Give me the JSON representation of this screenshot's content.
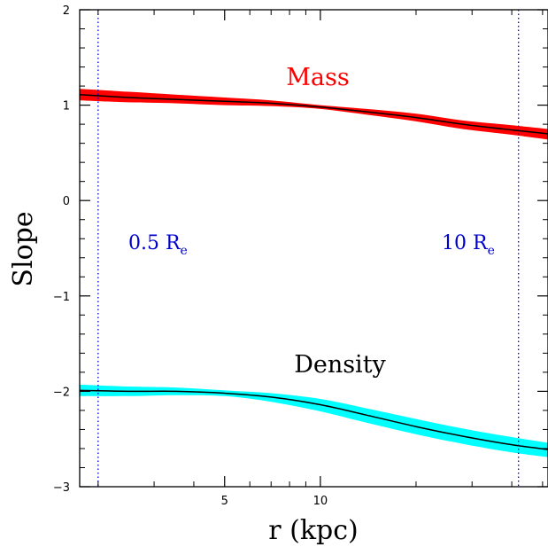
{
  "chart_data": {
    "type": "line",
    "xlabel": "r (kpc)",
    "ylabel": "Slope",
    "x_scale": "log",
    "xlim": [
      1.75,
      52
    ],
    "ylim": [
      -3,
      2
    ],
    "x_ticks": [
      {
        "value": 5,
        "label": "5"
      },
      {
        "value": 10,
        "label": "10"
      }
    ],
    "x_minor_ticks": [
      2,
      3,
      4,
      6,
      7,
      8,
      9,
      20,
      30,
      40,
      50
    ],
    "y_ticks": [
      {
        "value": 2,
        "label": "2"
      },
      {
        "value": 1,
        "label": "1"
      },
      {
        "value": 0,
        "label": "0"
      },
      {
        "value": -1,
        "label": "−1"
      },
      {
        "value": -2,
        "label": "−2"
      },
      {
        "value": -3,
        "label": "−3"
      }
    ],
    "y_minor_step": 0.2,
    "series": [
      {
        "name": "Mass",
        "color": "#ff0000",
        "line_color": "#000000",
        "x": [
          1.75,
          2.5,
          3.5,
          5,
          7,
          10,
          14,
          20,
          28,
          40,
          52
        ],
        "y": [
          1.11,
          1.08,
          1.06,
          1.04,
          1.02,
          0.98,
          0.93,
          0.87,
          0.8,
          0.74,
          0.7
        ],
        "lo": [
          1.05,
          1.03,
          1.02,
          1.0,
          0.99,
          0.96,
          0.9,
          0.83,
          0.75,
          0.69,
          0.64
        ],
        "hi": [
          1.17,
          1.14,
          1.11,
          1.08,
          1.05,
          1.0,
          0.96,
          0.91,
          0.84,
          0.79,
          0.75
        ]
      },
      {
        "name": "Density",
        "color": "#00ffff",
        "line_color": "#000000",
        "x": [
          1.75,
          2.5,
          3.5,
          5,
          7,
          10,
          14,
          20,
          28,
          40,
          52
        ],
        "y": [
          -1.99,
          -2.0,
          -2.0,
          -2.02,
          -2.06,
          -2.14,
          -2.25,
          -2.37,
          -2.47,
          -2.56,
          -2.61
        ],
        "lo": [
          -2.05,
          -2.05,
          -2.04,
          -2.05,
          -2.11,
          -2.21,
          -2.33,
          -2.45,
          -2.55,
          -2.64,
          -2.69
        ],
        "hi": [
          -1.93,
          -1.95,
          -1.96,
          -1.99,
          -2.02,
          -2.08,
          -2.18,
          -2.29,
          -2.39,
          -2.48,
          -2.54
        ]
      }
    ],
    "vlines": [
      {
        "x": 2.0,
        "color": "#0000cc",
        "style": "dotted",
        "label": "0.5 R",
        "label_sub": "e"
      },
      {
        "x": 42.0,
        "color": "#0000cc",
        "style": "dotted",
        "label": "10 R",
        "label_sub": "e"
      }
    ],
    "annotations": [
      {
        "text": "Mass",
        "color": "#ff0000"
      },
      {
        "text": "Density",
        "color": "#000000"
      }
    ]
  }
}
